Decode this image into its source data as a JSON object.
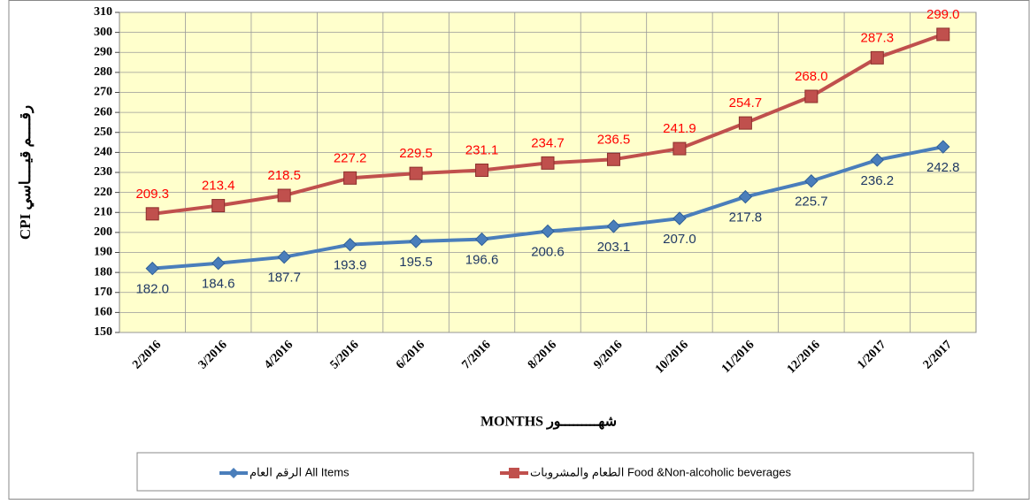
{
  "chart_data": {
    "type": "line",
    "y_label": "CPI رقــــم قيــــاسي",
    "x_label": "MONTHS شهـــــــــور",
    "categories": [
      "2/2016",
      "3/2016",
      "4/2016",
      "5/2016",
      "6/2016",
      "7/2016",
      "8/2016",
      "9/2016",
      "10/2016",
      "11/2016",
      "12/2016",
      "1/2017",
      "2/2017"
    ],
    "series": [
      {
        "name": "الرقم العام All Items",
        "color": "#4a7ebb",
        "label_color": "#1f3864",
        "label_position": "below",
        "values": [
          182.0,
          184.6,
          187.7,
          193.9,
          195.5,
          196.6,
          200.6,
          203.1,
          207.0,
          217.8,
          225.7,
          236.2,
          242.8
        ],
        "value_labels": [
          "182.0",
          "184.6",
          "187.7",
          "193.9",
          "195.5",
          "196.6",
          "200.6",
          "203.1",
          "207.0",
          "217.8",
          "225.7",
          "236.2",
          "242.8"
        ]
      },
      {
        "name": "الطعام والمشروبات Food &Non-alcoholic beverages",
        "color": "#c0504d",
        "label_color": "#ff0000",
        "label_position": "above",
        "values": [
          209.3,
          213.4,
          218.5,
          227.2,
          229.5,
          231.1,
          234.7,
          236.5,
          241.9,
          254.7,
          268.0,
          287.3,
          299.0
        ],
        "value_labels": [
          "209.3",
          "213.4",
          "218.5",
          "227.2",
          "229.5",
          "231.1",
          "234.7",
          "236.5",
          "241.9",
          "254.7",
          "268.0",
          "287.3",
          "299.0"
        ]
      }
    ],
    "ylim": [
      150,
      310
    ],
    "yticks": [
      150,
      160,
      170,
      180,
      190,
      200,
      210,
      220,
      230,
      240,
      250,
      260,
      270,
      280,
      290,
      300,
      310
    ],
    "grid": true,
    "plot_background": "#ffffcc"
  }
}
